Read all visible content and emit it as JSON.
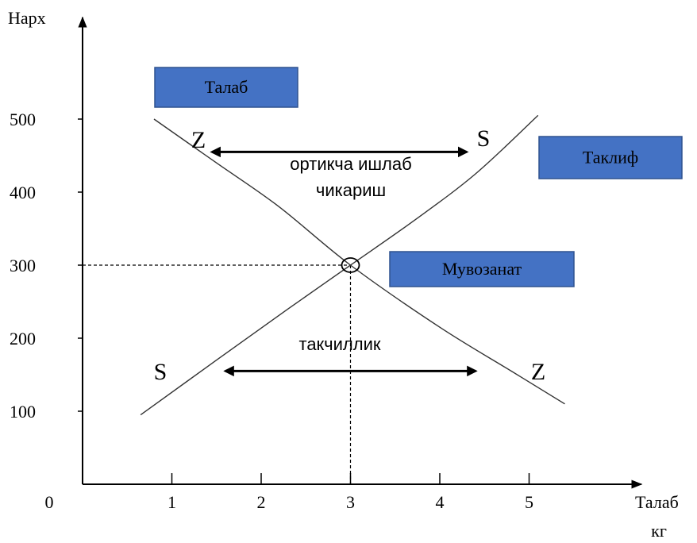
{
  "chart_data": {
    "type": "line",
    "ylabel": "Нарх",
    "xlabel": "Талаб",
    "xunit": "кг",
    "origin_label": "0",
    "x_ticks": [
      1,
      2,
      3,
      4,
      5
    ],
    "y_ticks": [
      100,
      200,
      300,
      400,
      500
    ],
    "xlim": [
      0,
      6.3
    ],
    "ylim": [
      0,
      640
    ],
    "series": [
      {
        "name": "Талаб",
        "end_label": "Z",
        "points": [
          [
            0.8,
            500
          ],
          [
            1.5,
            440
          ],
          [
            2.2,
            380
          ],
          [
            3.0,
            300
          ],
          [
            4.0,
            215
          ],
          [
            4.8,
            155
          ],
          [
            5.4,
            110
          ]
        ]
      },
      {
        "name": "Таклиф",
        "end_label": "S",
        "points": [
          [
            0.65,
            95
          ],
          [
            1.5,
            170
          ],
          [
            2.3,
            240
          ],
          [
            3.0,
            300
          ],
          [
            3.7,
            360
          ],
          [
            4.4,
            425
          ],
          [
            5.1,
            505
          ]
        ]
      }
    ],
    "equilibrium": {
      "x": 3,
      "y": 300,
      "label": "Мувозанат"
    },
    "annotations": [
      {
        "text": "ортикча ишлаб",
        "text2": "чикариш",
        "arrow_from": 1.45,
        "arrow_to": 4.3,
        "y": 455,
        "left_label": "Z",
        "right_label": "S"
      },
      {
        "text": "такчиллик",
        "arrow_from": 1.6,
        "arrow_to": 4.4,
        "y": 155,
        "left_label": "S",
        "right_label": "Z"
      }
    ],
    "colors": {
      "box": "#4472c4",
      "curve": "#333333",
      "axis": "#000000"
    }
  }
}
